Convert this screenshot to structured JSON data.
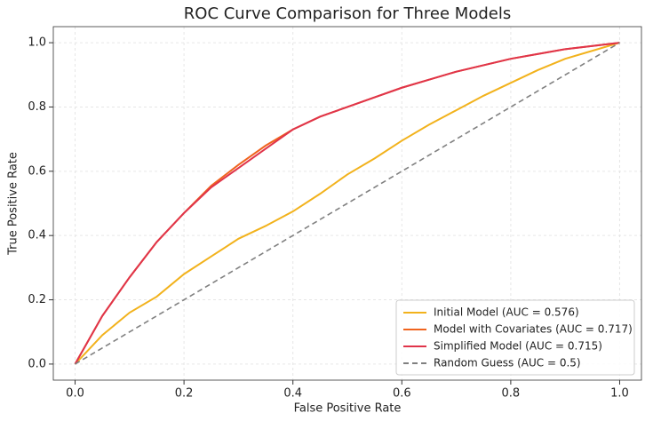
{
  "chart_data": {
    "type": "line",
    "title": "ROC Curve Comparison for Three Models",
    "x_label": "False Positive Rate",
    "y_label": "True Positive Rate",
    "x": [
      0,
      0.05,
      0.1,
      0.15,
      0.2,
      0.25,
      0.3,
      0.35,
      0.4,
      0.45,
      0.5,
      0.55,
      0.6,
      0.65,
      0.7,
      0.75,
      0.8,
      0.85,
      0.9,
      0.95,
      1
    ],
    "series": [
      {
        "name": "Initial Model (AUC = 0.576)",
        "color": "#f2b21c",
        "dashed": false,
        "values": [
          0,
          0.09,
          0.16,
          0.21,
          0.28,
          0.335,
          0.39,
          0.43,
          0.475,
          0.53,
          0.59,
          0.64,
          0.695,
          0.745,
          0.79,
          0.835,
          0.875,
          0.915,
          0.95,
          0.975,
          1
        ]
      },
      {
        "name": "Model with Covariates (AUC = 0.717)",
        "color": "#f0641e",
        "dashed": false,
        "values": [
          0,
          0.15,
          0.27,
          0.38,
          0.47,
          0.555,
          0.62,
          0.68,
          0.73,
          0.77,
          0.8,
          0.83,
          0.86,
          0.885,
          0.91,
          0.93,
          0.95,
          0.965,
          0.98,
          0.99,
          1
        ]
      },
      {
        "name": "Simplified Model (AUC = 0.715)",
        "color": "#e0344a",
        "dashed": false,
        "values": [
          0,
          0.15,
          0.27,
          0.38,
          0.47,
          0.55,
          0.61,
          0.67,
          0.73,
          0.77,
          0.8,
          0.83,
          0.86,
          0.885,
          0.91,
          0.93,
          0.95,
          0.965,
          0.98,
          0.99,
          1
        ]
      },
      {
        "name": "Random Guess (AUC = 0.5)",
        "color": "#808080",
        "dashed": true,
        "values": [
          0,
          0.05,
          0.1,
          0.15,
          0.2,
          0.25,
          0.3,
          0.35,
          0.4,
          0.45,
          0.5,
          0.55,
          0.6,
          0.65,
          0.7,
          0.75,
          0.8,
          0.85,
          0.9,
          0.95,
          1
        ]
      }
    ],
    "xlim": [
      -0.04,
      1.04
    ],
    "ylim": [
      -0.05,
      1.05
    ],
    "xticks": [
      {
        "value": 0,
        "label": "0.0"
      },
      0.2,
      0.4,
      0.6,
      0.8,
      {
        "value": 1,
        "label": "1.0"
      }
    ],
    "yticks": [
      {
        "value": 0,
        "label": "0.0"
      },
      0.2,
      0.4,
      0.6,
      0.8,
      {
        "value": 1,
        "label": "1.0"
      }
    ],
    "grid": true,
    "legend": "lower right"
  }
}
